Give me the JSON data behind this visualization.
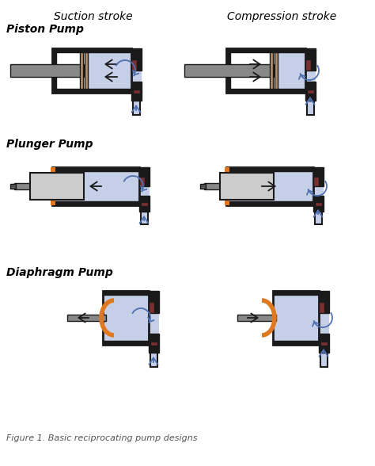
{
  "suction_label": "Suction stroke",
  "compression_label": "Compression stroke",
  "pump_labels": [
    "Piston Pump",
    "Plunger Pump",
    "Diaphragm Pump"
  ],
  "figure_caption": "Figure 1. Basic reciprocating pump designs",
  "bg_color": "#ffffff",
  "chamber_color": "#c5cfe8",
  "wall_color": "#1a1a1a",
  "piston_color": "#b8926a",
  "rod_color": "#888888",
  "plunger_color": "#cccccc",
  "valve_color": "#7a3030",
  "diaphragm_color": "#e07820",
  "arrow_color": "#5070b0",
  "text_color": "#000000",
  "caption_color": "#555555"
}
